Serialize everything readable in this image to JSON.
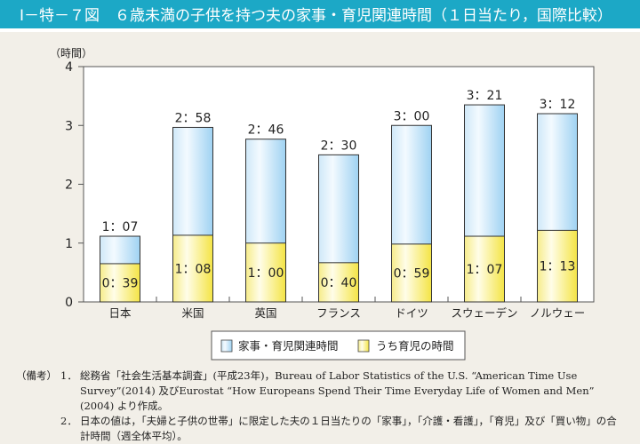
{
  "title": "Ⅰ－特－７図　６歳未満の子供を持つ夫の家事・育児関連時間（１日当たり，国際比較）",
  "chart_data": {
    "type": "bar",
    "stacked": "overlay",
    "ylabel": "（時間）",
    "ylim": [
      0,
      4
    ],
    "yticks": [
      "0",
      "1",
      "2",
      "3",
      "4"
    ],
    "categories": [
      "日本",
      "米国",
      "英国",
      "フランス",
      "ドイツ",
      "スウェーデン",
      "ノルウェー"
    ],
    "series": [
      {
        "name": "家事・育児関連時間",
        "values_minutes": [
          67,
          178,
          166,
          150,
          180,
          201,
          192
        ],
        "labels": [
          "1：07",
          "2：58",
          "2：46",
          "2：30",
          "3：00",
          "3：21",
          "3：12"
        ],
        "color": "#a8d6f2"
      },
      {
        "name": "うち育児の時間",
        "values_minutes": [
          39,
          68,
          60,
          40,
          59,
          67,
          73
        ],
        "labels": [
          "0：39",
          "1：08",
          "1：00",
          "0：40",
          "0：59",
          "1：07",
          "1：13"
        ],
        "color": "#f7ea6a"
      }
    ],
    "legend": "bottom",
    "grid": false
  },
  "notes": {
    "label": "（備考）",
    "items": [
      {
        "num": "1．",
        "text": "総務省「社会生活基本調査」(平成23年)，Bureau of Labor Statistics of the U.S. “American Time Use Survey”(2014) 及びEurostat “How Europeans Spend Their Time Everyday Life of Women and Men” (2004) より作成。"
      },
      {
        "num": "2．",
        "text": "日本の値は，「夫婦と子供の世帯」に限定した夫の１日当たりの「家事」，「介護・看護」，「育児」及び「買い物」の合計時間（週全体平均）。"
      }
    ]
  }
}
